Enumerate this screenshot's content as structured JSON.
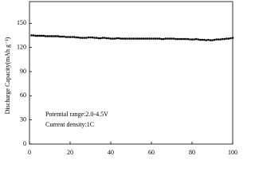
{
  "chart_data": {
    "type": "scatter",
    "ylabel": "Discharge Capacity(mAh g⁻¹)",
    "annotations": [
      "Potential range:2.0-4.5V",
      "Current density:1C"
    ],
    "x": [
      1,
      2,
      3,
      4,
      5,
      6,
      7,
      8,
      9,
      10,
      11,
      12,
      13,
      14,
      15,
      16,
      17,
      18,
      19,
      20,
      21,
      22,
      23,
      24,
      25,
      26,
      27,
      28,
      29,
      30,
      31,
      32,
      33,
      34,
      35,
      36,
      37,
      38,
      39,
      40,
      41,
      42,
      43,
      44,
      45,
      46,
      47,
      48,
      49,
      50,
      51,
      52,
      53,
      54,
      55,
      56,
      57,
      58,
      59,
      60,
      61,
      62,
      63,
      64,
      65,
      66,
      67,
      68,
      69,
      70,
      71,
      72,
      73,
      74,
      75,
      76,
      77,
      78,
      79,
      80,
      81,
      82,
      83,
      84,
      85,
      86,
      87,
      88,
      89,
      90,
      91,
      92,
      93,
      94,
      95,
      96,
      97,
      98,
      99,
      100
    ],
    "values": [
      135,
      135,
      134.5,
      134.5,
      134.5,
      134.5,
      134.5,
      134,
      134,
      134,
      134,
      134,
      134,
      134,
      133.5,
      133.5,
      133.5,
      133,
      133,
      133,
      133,
      133,
      132.5,
      132.5,
      132,
      132,
      132,
      132,
      132.5,
      132.5,
      132.5,
      132,
      132,
      131.5,
      131.5,
      132,
      132,
      131.5,
      131.5,
      131,
      131,
      131,
      131.5,
      131.5,
      131,
      131,
      131,
      131,
      131,
      131,
      131,
      131,
      131,
      131,
      131,
      131,
      131,
      131,
      131,
      131,
      131,
      131,
      131,
      131,
      130.5,
      130.5,
      131,
      131,
      131,
      131,
      131,
      130.5,
      130.5,
      130.5,
      130.5,
      130.5,
      130.5,
      130.5,
      130,
      130,
      130,
      130.5,
      130,
      129.5,
      129.5,
      129.5,
      129,
      129.5,
      129,
      129,
      129.5,
      130,
      130,
      130,
      130.5,
      130.5,
      131,
      131,
      131.5,
      132
    ],
    "color": "#000000",
    "xlim": [
      0,
      100
    ],
    "xticks": [
      0,
      20,
      40,
      60,
      80,
      100
    ],
    "ylim": [
      0,
      177
    ],
    "yticks": [
      0,
      30,
      60,
      90,
      120,
      150
    ]
  }
}
